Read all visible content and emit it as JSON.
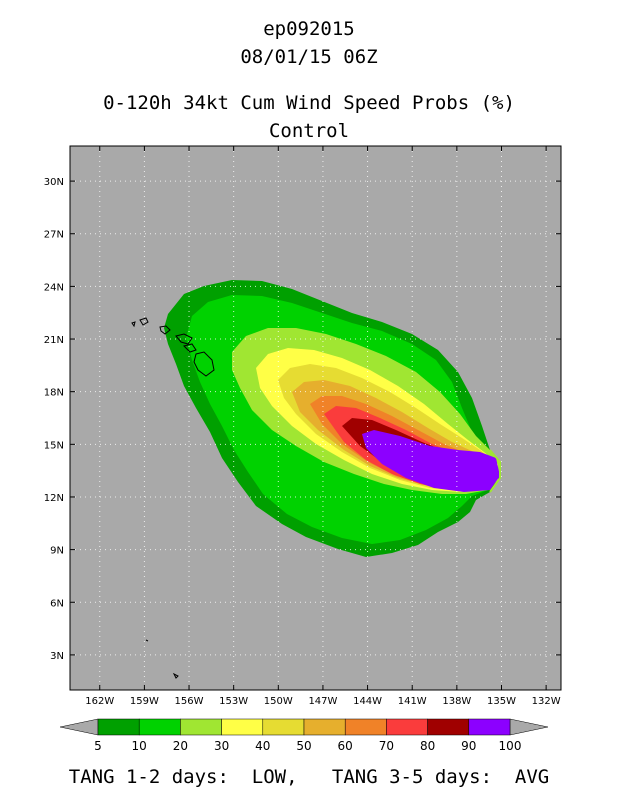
{
  "titles": {
    "storm": "ep092015",
    "datetime": "08/01/15 06Z",
    "product": "0-120h 34kt Cum Wind Speed Probs (%)",
    "model": "Control"
  },
  "map": {
    "lat_labels": [
      "30N",
      "27N",
      "24N",
      "21N",
      "18N",
      "15N",
      "12N",
      "9N",
      "6N",
      "3N"
    ],
    "lon_labels": [
      "162W",
      "159W",
      "156W",
      "153W",
      "150W",
      "147W",
      "144W",
      "141W",
      "138W",
      "135W",
      "132W"
    ],
    "lon_range": [
      -164,
      -131
    ],
    "lat_range": [
      1,
      32
    ],
    "background_color": "#a9a9a9"
  },
  "legend": {
    "levels": [
      "5",
      "10",
      "20",
      "30",
      "40",
      "50",
      "60",
      "70",
      "80",
      "90",
      "100"
    ],
    "colors": [
      "#00a000",
      "#00d200",
      "#a0e632",
      "#ffff46",
      "#e6dc32",
      "#e6af2d",
      "#f08228",
      "#fa3c3c",
      "#a00000",
      "#8c00ff"
    ],
    "endcap_color": "#a9a9a9"
  },
  "footer": {
    "text": "TANG 1-2 days:  LOW,   TANG 3-5 days:  AVG"
  }
}
